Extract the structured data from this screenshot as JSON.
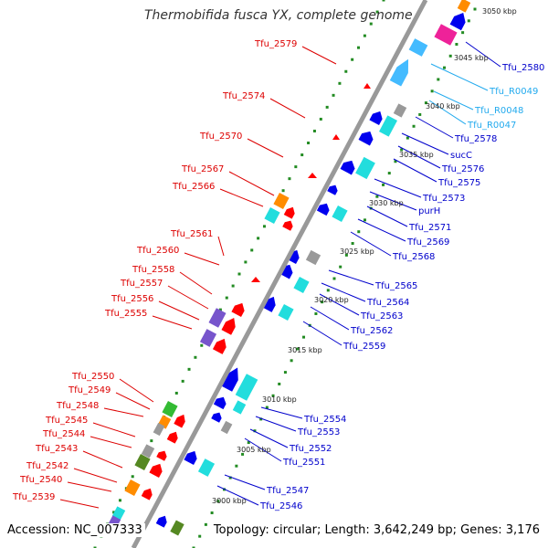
{
  "title": "Thermobifida fusca YX, complete genome",
  "accession": "Accession: NC_007333",
  "summary": "Topology: circular; Length: 3,642,249 bp; Genes: 3,176",
  "colors": {
    "backbone": "#999999",
    "tick": "#228b22",
    "left_label": "#dd0000",
    "right_label": "#0000cc",
    "rna_label": "#22aaee",
    "red": "#ff0000",
    "orange": "#ff8c00",
    "cyan": "#22dddd",
    "blue": "#0000ee",
    "lightblue": "#44bbff",
    "magenta": "#ee2299",
    "green": "#33bb33",
    "olive": "#558822",
    "purple": "#7755cc",
    "gray": "#999999"
  },
  "scale_labels": [
    "3050 kbp",
    "3045 kbp",
    "3040 kbp",
    "3035 kbp",
    "3030 kbp",
    "3025 kbp",
    "3020 kbp",
    "3015 kbp",
    "3010 kbp",
    "3005 kbp",
    "3000 kbp"
  ],
  "left_genes": [
    "Tfu_2579",
    "Tfu_2574",
    "Tfu_2570",
    "Tfu_2567",
    "Tfu_2566",
    "Tfu_2561",
    "Tfu_2560",
    "Tfu_2558",
    "Tfu_2557",
    "Tfu_2556",
    "Tfu_2555",
    "Tfu_2550",
    "Tfu_2549",
    "Tfu_2548",
    "Tfu_2545",
    "Tfu_2544",
    "Tfu_2543",
    "Tfu_2542",
    "Tfu_2540",
    "Tfu_2539"
  ],
  "right_genes": [
    "Tfu_2580",
    "Tfu_R0049",
    "Tfu_R0048",
    "Tfu_R0047",
    "Tfu_2578",
    "sucC",
    "Tfu_2576",
    "Tfu_2575",
    "Tfu_2573",
    "purH",
    "Tfu_2571",
    "Tfu_2569",
    "Tfu_2568",
    "Tfu_2565",
    "Tfu_2564",
    "Tfu_2563",
    "Tfu_2562",
    "Tfu_2559",
    "Tfu_2554",
    "Tfu_2553",
    "Tfu_2552",
    "Tfu_2551",
    "Tfu_2547",
    "Tfu_2546"
  ]
}
